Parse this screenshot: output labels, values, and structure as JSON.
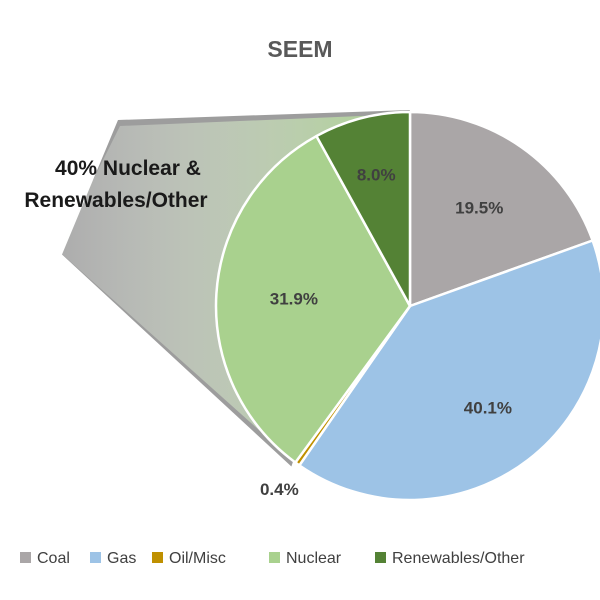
{
  "chart_data": {
    "type": "pie",
    "title": "SEEM",
    "categories": [
      "Coal",
      "Gas",
      "Oil/Misc",
      "Nuclear",
      "Renewables/Other"
    ],
    "values": [
      19.5,
      40.1,
      0.4,
      31.9,
      8.0
    ],
    "value_labels": [
      "19.5%",
      "40.1%",
      "0.4%",
      "31.9%",
      "8.0%"
    ],
    "colors": [
      "#aaa6a7",
      "#9dc3e6",
      "#bf9000",
      "#a9d18e",
      "#548235"
    ],
    "start_angle_deg": 0,
    "direction": "clockwise",
    "legend_position": "bottom",
    "callout": {
      "text_line1": "40% Nuclear &",
      "text_line2": "Renewables/Other",
      "gradient_from": "#a9d18e",
      "gradient_to": "#ffffff"
    }
  }
}
